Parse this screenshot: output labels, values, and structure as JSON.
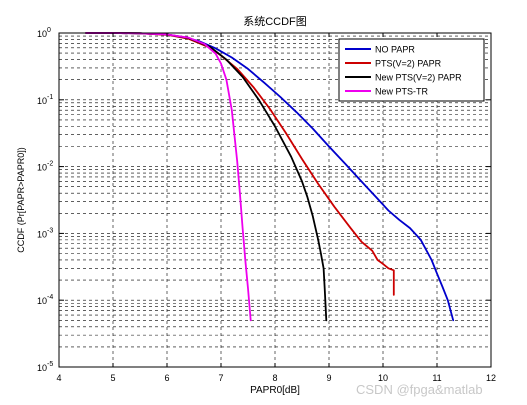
{
  "chart_data": {
    "type": "line",
    "title": "系统CCDF图",
    "xlabel": "PAPR0[dB]",
    "ylabel": "CCDF (Pr[PAPR>PAPR0])",
    "xlim": [
      4,
      12
    ],
    "ylim": [
      1e-05,
      1
    ],
    "yscale": "log",
    "grid": "dashed",
    "legend_position": "top-right",
    "x_ticks": [
      "4",
      "5",
      "6",
      "7",
      "8",
      "9",
      "10",
      "11",
      "12"
    ],
    "y_ticks": [
      {
        "base": "10",
        "exp": "0"
      },
      {
        "base": "10",
        "exp": "-1"
      },
      {
        "base": "10",
        "exp": "-2"
      },
      {
        "base": "10",
        "exp": "-3"
      },
      {
        "base": "10",
        "exp": "-4"
      },
      {
        "base": "10",
        "exp": "-5"
      }
    ],
    "series": [
      {
        "name": "NO PAPR",
        "color": "#0000cc",
        "x": [
          4.5,
          5.0,
          5.5,
          6.0,
          6.3,
          6.6,
          6.9,
          7.2,
          7.5,
          7.8,
          8.1,
          8.4,
          8.7,
          9.0,
          9.3,
          9.6,
          9.9,
          10.1,
          10.3,
          10.5,
          10.7,
          10.9,
          11.0,
          11.1,
          11.2,
          11.3
        ],
        "y": [
          1.0,
          0.999,
          0.99,
          0.95,
          0.87,
          0.75,
          0.59,
          0.43,
          0.29,
          0.18,
          0.11,
          0.065,
          0.037,
          0.02,
          0.011,
          0.006,
          0.0033,
          0.0022,
          0.0016,
          0.0012,
          0.0008,
          0.0004,
          0.00025,
          0.00016,
          0.0001,
          5e-05
        ]
      },
      {
        "name": "PTS(V=2) PAPR",
        "color": "#cc0000",
        "x": [
          4.5,
          5.0,
          5.5,
          6.0,
          6.4,
          6.8,
          7.0,
          7.3,
          7.6,
          7.9,
          8.2,
          8.5,
          8.8,
          9.1,
          9.4,
          9.6,
          9.8,
          9.9,
          10.0,
          10.1,
          10.2,
          10.2
        ],
        "y": [
          1.0,
          0.999,
          0.99,
          0.94,
          0.82,
          0.6,
          0.46,
          0.29,
          0.155,
          0.074,
          0.032,
          0.013,
          0.0055,
          0.0025,
          0.0012,
          0.00075,
          0.00055,
          0.0004,
          0.00035,
          0.0003,
          0.00028,
          0.00012
        ]
      },
      {
        "name": "New PTS(V=2) PAPR",
        "color": "#000000",
        "x": [
          4.5,
          5.0,
          5.5,
          6.0,
          6.4,
          6.8,
          7.1,
          7.4,
          7.7,
          8.0,
          8.3,
          8.5,
          8.6,
          8.7,
          8.8,
          8.85,
          8.9,
          8.92,
          8.95
        ],
        "y": [
          1.0,
          0.999,
          0.99,
          0.95,
          0.84,
          0.62,
          0.4,
          0.22,
          0.1,
          0.04,
          0.014,
          0.006,
          0.0035,
          0.0018,
          0.0008,
          0.0005,
          0.0003,
          0.00015,
          5e-05
        ]
      },
      {
        "name": "New PTS-TR",
        "color": "#ee00ee",
        "x": [
          4.5,
          5.0,
          5.5,
          6.0,
          6.4,
          6.7,
          6.9,
          7.0,
          7.1,
          7.2,
          7.3,
          7.35,
          7.4,
          7.45,
          7.5,
          7.55
        ],
        "y": [
          1.0,
          0.999,
          0.99,
          0.95,
          0.85,
          0.68,
          0.49,
          0.35,
          0.2,
          0.07,
          0.012,
          0.004,
          0.0012,
          0.0004,
          0.00015,
          5e-05
        ]
      }
    ]
  },
  "watermark": "CSDN @fpga&matlab"
}
